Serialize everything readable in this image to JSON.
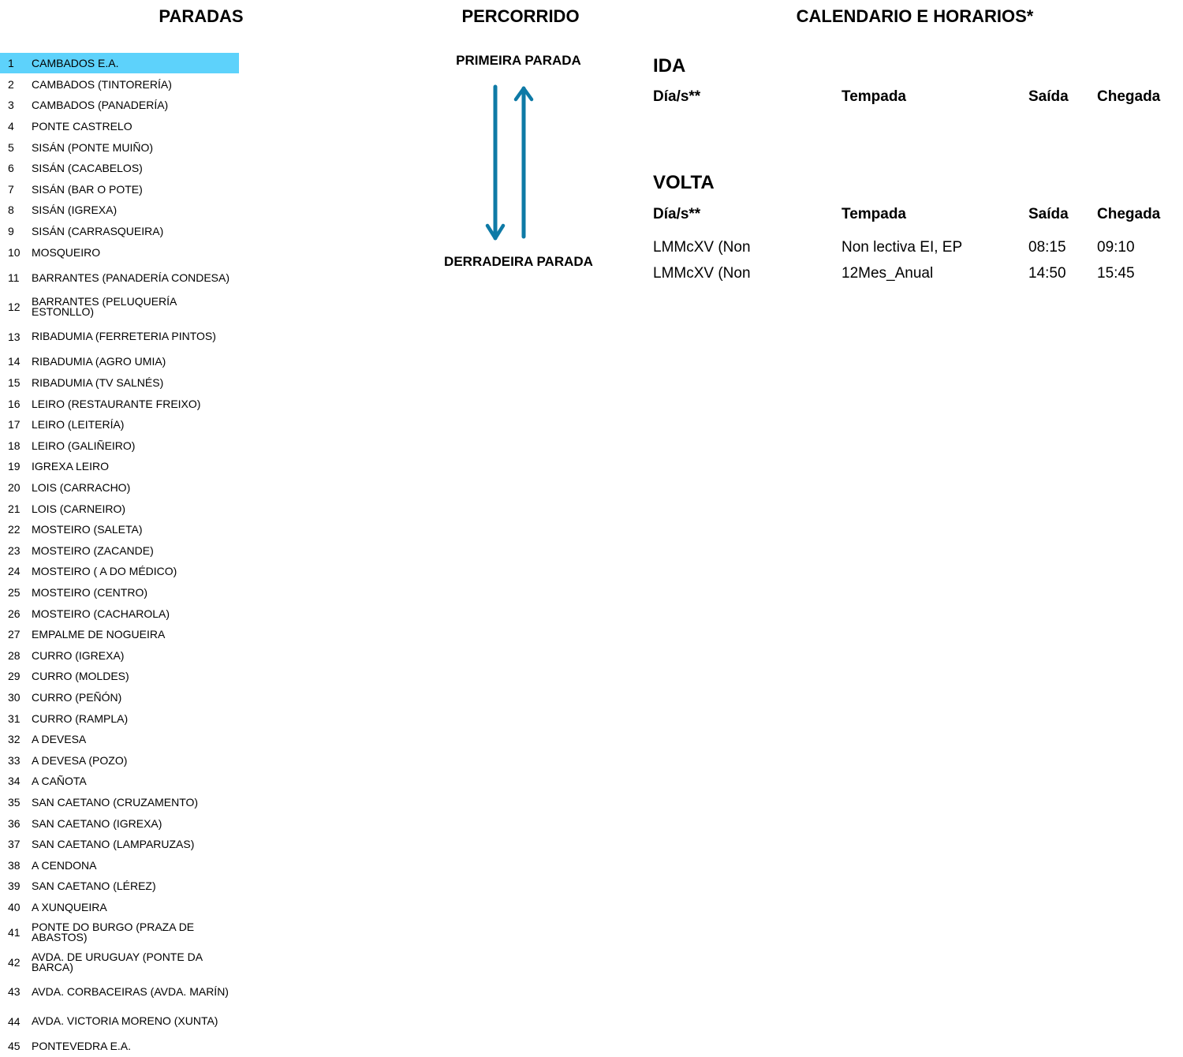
{
  "headers": {
    "paradas": "PARADAS",
    "percorrido": "PERCORRIDO",
    "calendario": "CALENDARIO E HORARIOS*"
  },
  "route": {
    "first_stop_label": "PRIMEIRA PARADA",
    "last_stop_label": "DERRADEIRA PARADA",
    "arrow_color": "#0e7aa6"
  },
  "stops": [
    {
      "num": "1",
      "name": "CAMBADOS E.A."
    },
    {
      "num": "2",
      "name": "CAMBADOS (TINTORERÍA)"
    },
    {
      "num": "3",
      "name": "CAMBADOS (PANADERÍA)"
    },
    {
      "num": "4",
      "name": "PONTE CASTRELO"
    },
    {
      "num": "5",
      "name": "SISÁN (PONTE MUIÑO)"
    },
    {
      "num": "6",
      "name": "SISÁN (CACABELOS)"
    },
    {
      "num": "7",
      "name": "SISÁN (BAR O POTE)"
    },
    {
      "num": "8",
      "name": "SISÁN (IGREXA)"
    },
    {
      "num": "9",
      "name": "SISÁN (CARRASQUEIRA)"
    },
    {
      "num": "10",
      "name": "MOSQUEIRO"
    },
    {
      "num": "11",
      "name": "BARRANTES (PANADERÍA CONDESA)"
    },
    {
      "num": "12",
      "name": "BARRANTES (PELUQUERÍA ESTONLLO)"
    },
    {
      "num": "13",
      "name": "RIBADUMIA (FERRETERIA PINTOS)"
    },
    {
      "num": "14",
      "name": "RIBADUMIA (AGRO UMIA)"
    },
    {
      "num": "15",
      "name": "RIBADUMIA (TV SALNÉS)"
    },
    {
      "num": "16",
      "name": "LEIRO (RESTAURANTE FREIXO)"
    },
    {
      "num": "17",
      "name": "LEIRO (LEITERÍA)"
    },
    {
      "num": "18",
      "name": "LEIRO (GALIÑEIRO)"
    },
    {
      "num": "19",
      "name": "IGREXA LEIRO"
    },
    {
      "num": "20",
      "name": "LOIS (CARRACHO)"
    },
    {
      "num": "21",
      "name": "LOIS (CARNEIRO)"
    },
    {
      "num": "22",
      "name": "MOSTEIRO (SALETA)"
    },
    {
      "num": "23",
      "name": "MOSTEIRO (ZACANDE)"
    },
    {
      "num": "24",
      "name": "MOSTEIRO ( A DO MÉDICO)"
    },
    {
      "num": "25",
      "name": "MOSTEIRO (CENTRO)"
    },
    {
      "num": "26",
      "name": "MOSTEIRO (CACHAROLA)"
    },
    {
      "num": "27",
      "name": "EMPALME DE NOGUEIRA"
    },
    {
      "num": "28",
      "name": "CURRO (IGREXA)"
    },
    {
      "num": "29",
      "name": "CURRO (MOLDES)"
    },
    {
      "num": "30",
      "name": "CURRO (PEÑÓN)"
    },
    {
      "num": "31",
      "name": "CURRO (RAMPLA)"
    },
    {
      "num": "32",
      "name": "A DEVESA"
    },
    {
      "num": "33",
      "name": "A DEVESA (POZO)"
    },
    {
      "num": "34",
      "name": "A CAÑOTA"
    },
    {
      "num": "35",
      "name": "SAN CAETANO (CRUZAMENTO)"
    },
    {
      "num": "36",
      "name": "SAN CAETANO (IGREXA)"
    },
    {
      "num": "37",
      "name": "SAN CAETANO (LAMPARUZAS)"
    },
    {
      "num": "38",
      "name": "A CENDONA"
    },
    {
      "num": "39",
      "name": "SAN CAETANO (LÉREZ)"
    },
    {
      "num": "40",
      "name": "A XUNQUEIRA"
    },
    {
      "num": "41",
      "name": "PONTE DO BURGO (PRAZA DE ABASTOS)"
    },
    {
      "num": "42",
      "name": "AVDA. DE URUGUAY (PONTE DA BARCA)"
    },
    {
      "num": "43",
      "name": "AVDA. CORBACEIRAS (AVDA. MARÍN)"
    },
    {
      "num": "44",
      "name": "AVDA. VICTORIA MORENO (XUNTA)"
    },
    {
      "num": "45",
      "name": "PONTEVEDRA E.A."
    }
  ],
  "highlight_color": "#5dd2fb",
  "ida": {
    "title": "IDA",
    "columns": {
      "dia": "Día/s**",
      "tempada": "Tempada",
      "saida": "Saída",
      "chegada": "Chegada"
    },
    "rows": []
  },
  "volta": {
    "title": "VOLTA",
    "columns": {
      "dia": "Día/s**",
      "tempada": "Tempada",
      "saida": "Saída",
      "chegada": "Chegada"
    },
    "rows": [
      {
        "dia": "LMMcXV (Non",
        "tempada": "Non lectiva EI, EP",
        "saida": "08:15",
        "chegada": "09:10"
      },
      {
        "dia": "LMMcXV (Non",
        "tempada": "12Mes_Anual",
        "saida": "14:50",
        "chegada": "15:45"
      }
    ]
  }
}
